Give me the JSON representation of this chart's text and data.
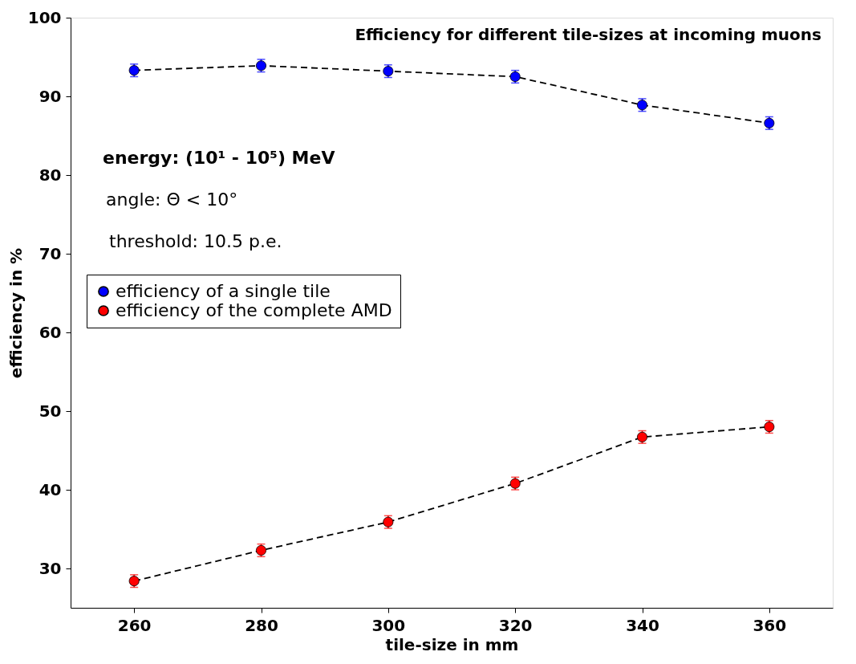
{
  "chart_data": {
    "type": "scatter",
    "title": "Efficiency for different tile-sizes at incoming muons",
    "xlabel": "tile-size in mm",
    "ylabel": "efficiency in %",
    "x": [
      260,
      280,
      300,
      320,
      340,
      360
    ],
    "series": [
      {
        "name": "efficiency of a single tile",
        "color": "#0000ff",
        "values": [
          93.3,
          93.9,
          93.2,
          92.5,
          88.9,
          86.6
        ],
        "errors": [
          0.8,
          0.8,
          0.8,
          0.8,
          0.8,
          0.8
        ],
        "marker": "circle"
      },
      {
        "name": "efficiency of the complete AMD",
        "color": "#ff0000",
        "values": [
          28.4,
          32.3,
          35.9,
          40.8,
          46.7,
          48.0
        ],
        "errors": [
          0.8,
          0.8,
          0.8,
          0.8,
          0.8,
          0.8
        ],
        "marker": "circle"
      },
      {
        "type": "line",
        "color": "#000000",
        "values": [
          93.3,
          93.9,
          93.2,
          92.5,
          88.9,
          86.6
        ],
        "line_style": "dashed",
        "marker": "none"
      },
      {
        "type": "line",
        "color": "#000000",
        "values": [
          28.4,
          32.3,
          35.9,
          40.8,
          46.7,
          48.0
        ],
        "line_style": "dashed",
        "marker": "none"
      }
    ],
    "annotations": [
      "energy: (10¹ - 10⁵) MeV",
      "angle: Θ < 10°",
      "threshold: 10.5 p.e."
    ],
    "xlim": [
      250,
      370
    ],
    "xticks": [
      260,
      280,
      300,
      320,
      340,
      360
    ],
    "ylim": [
      25,
      100
    ],
    "yticks": [
      30,
      40,
      50,
      60,
      70,
      80,
      90,
      100
    ],
    "grid": false,
    "legend": "left"
  }
}
